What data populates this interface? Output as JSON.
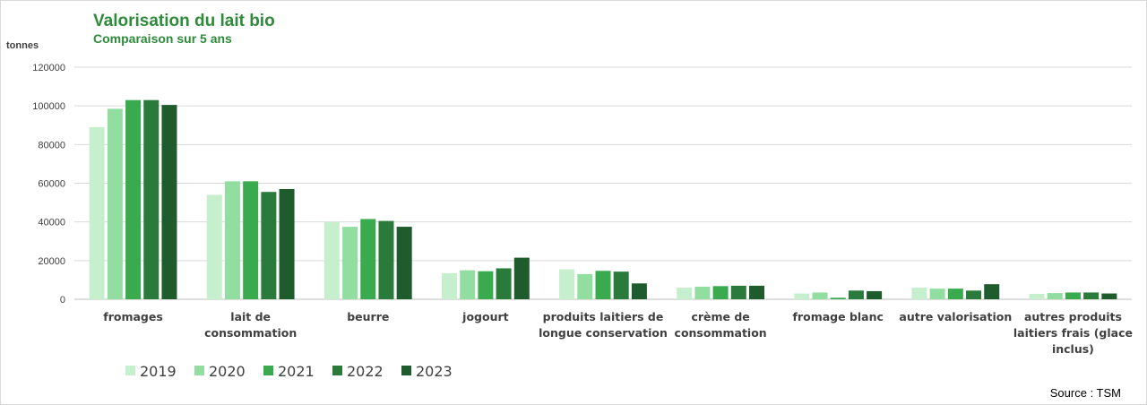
{
  "chart_data": {
    "type": "bar",
    "title": "Valorisation du lait bio",
    "subtitle": "Comparaison sur 5 ans",
    "ylabel": "tonnes",
    "xlabel": "",
    "ylim": [
      0,
      120000
    ],
    "yticks": [
      "0",
      "20000",
      "40000",
      "60000",
      "80000",
      "100000",
      "120000"
    ],
    "grid": true,
    "legend_position": "bottom-left",
    "categories": [
      [
        "fromages"
      ],
      [
        "lait de",
        "consommation"
      ],
      [
        "beurre"
      ],
      [
        "jogourt"
      ],
      [
        "produits laitiers de",
        "longue conservation"
      ],
      [
        "crème de",
        "consommation"
      ],
      [
        "fromage blanc"
      ],
      [
        "autre valorisation"
      ],
      [
        "autres produits",
        "laitiers frais (glace",
        "inclus)"
      ]
    ],
    "series": [
      {
        "name": "2019",
        "color": "#c6efce",
        "values": [
          89000,
          54000,
          40000,
          13500,
          15500,
          6000,
          3000,
          6000,
          2800
        ]
      },
      {
        "name": "2020",
        "color": "#92dea0",
        "values": [
          98500,
          61000,
          37500,
          15000,
          13000,
          6500,
          3500,
          5500,
          3200
        ]
      },
      {
        "name": "2021",
        "color": "#3aaa4f",
        "values": [
          103000,
          61000,
          41500,
          14500,
          14700,
          6800,
          800,
          5500,
          3500
        ]
      },
      {
        "name": "2022",
        "color": "#2a7a3b",
        "values": [
          103000,
          55500,
          40500,
          16000,
          14300,
          7000,
          4500,
          4500,
          3500
        ]
      },
      {
        "name": "2023",
        "color": "#1e5c2e",
        "values": [
          100500,
          57000,
          37500,
          21500,
          8200,
          7000,
          4200,
          7800,
          3000
        ]
      }
    ]
  },
  "footer": {
    "source": "Source : TSM"
  }
}
